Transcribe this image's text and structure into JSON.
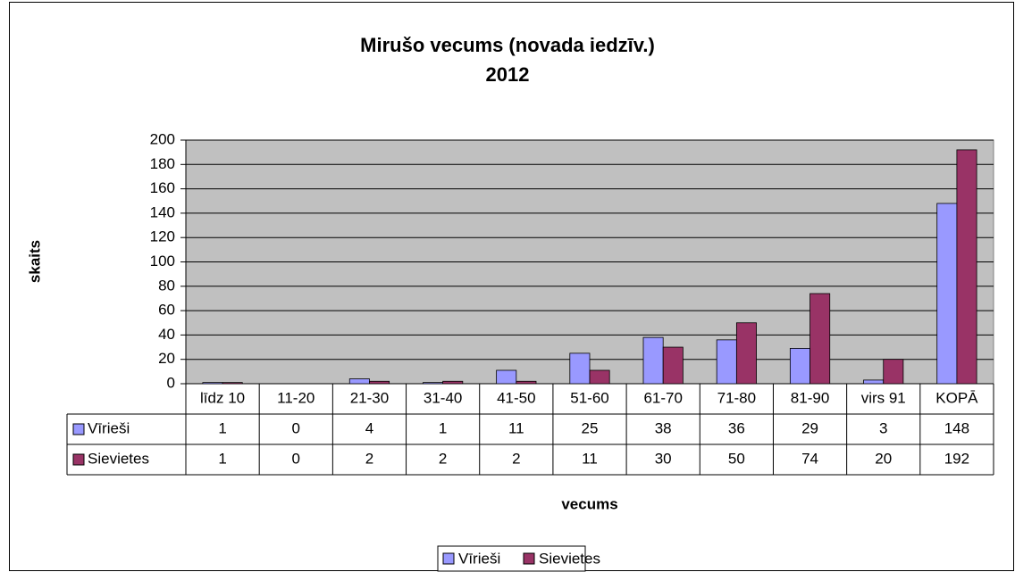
{
  "chart_data": {
    "type": "bar",
    "title": "Mirušo vecums (novada iedzīv.)",
    "subtitle": "2012",
    "x_label": "vecums",
    "y_label": "skaits",
    "categories": [
      "līdz 10",
      "11-20",
      "21-30",
      "31-40",
      "41-50",
      "51-60",
      "61-70",
      "71-80",
      "81-90",
      "virs 91",
      "KOPĀ"
    ],
    "series": [
      {
        "name": "Vīrieši",
        "color": "#9999ff",
        "values": [
          1,
          0,
          4,
          1,
          11,
          25,
          38,
          36,
          29,
          3,
          148
        ]
      },
      {
        "name": "Sievietes",
        "color": "#993366",
        "values": [
          1,
          0,
          2,
          2,
          2,
          11,
          30,
          50,
          74,
          20,
          192
        ]
      }
    ],
    "ylim": [
      0,
      200
    ],
    "yticks": [
      0,
      20,
      40,
      60,
      80,
      100,
      120,
      140,
      160,
      180,
      200
    ],
    "grid": true,
    "plot_background": "#c0c0c0",
    "legend": "bottom"
  }
}
